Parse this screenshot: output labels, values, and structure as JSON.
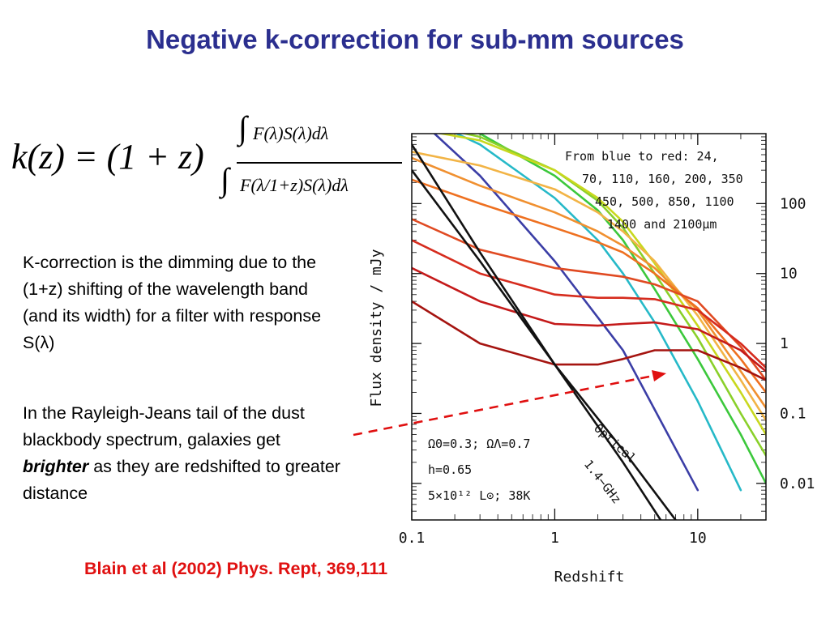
{
  "slide": {
    "title": "Negative k-correction for sub-mm sources",
    "formula": {
      "lhs": "k(z) = (1 + z)",
      "integral": "∫",
      "numerator": "F(λ)S(λ)dλ",
      "denominator": "F(λ/1+z)S(λ)dλ"
    },
    "paragraph1": "K-correction is the dimming due to the (1+z) shifting of the wavelength band (and its width) for a filter with response S(λ)",
    "paragraph2_before": "In the Rayleigh-Jeans tail of the dust blackbody spectrum, galaxies get ",
    "paragraph2_emph": "brighter",
    "paragraph2_after": " as they are redshifted to greater distance",
    "citation": "Blain et al (2002) Phys. Rept, 369,111"
  },
  "chart_data": {
    "type": "line",
    "xlabel": "Redshift",
    "ylabel": "Flux density / mJy",
    "xscale": "log",
    "yscale": "log",
    "xlim": [
      0.1,
      30
    ],
    "ylim": [
      0.003,
      1000
    ],
    "xticks": [
      0.1,
      1,
      10
    ],
    "xtick_labels": [
      "0.1",
      "1",
      "10"
    ],
    "yticks": [
      100,
      10,
      1,
      0.1,
      0.01
    ],
    "ytick_labels": [
      "100",
      "10",
      "1",
      "0.1",
      "0.01"
    ],
    "legend_text": [
      "From blue to red: 24,",
      "70, 110, 160, 200, 350",
      "450, 500, 850, 1100",
      "1400 and 2100μm"
    ],
    "params_text": [
      "Ω0=0.3;  ΩΛ=0.7",
      "h=0.65",
      "5×10¹² L⊙;  38K"
    ],
    "curve_labels": [
      "Optical",
      "1.4−GHz"
    ],
    "series": [
      {
        "name": "24",
        "color": "#3b3ea6",
        "x": [
          0.1,
          0.3,
          1,
          3,
          10
        ],
        "y": [
          2000,
          250,
          15,
          0.8,
          0.008
        ]
      },
      {
        "name": "70",
        "color": "#26b9c8",
        "x": [
          0.1,
          0.3,
          1,
          2,
          3,
          5,
          10,
          20
        ],
        "y": [
          2000,
          700,
          120,
          30,
          10,
          2,
          0.15,
          0.008
        ]
      },
      {
        "name": "110",
        "color": "#3cc83c",
        "x": [
          0.1,
          0.3,
          1,
          2,
          3,
          5,
          10,
          20,
          30
        ],
        "y": [
          2000,
          1000,
          250,
          80,
          30,
          6,
          0.6,
          0.05,
          0.01
        ]
      },
      {
        "name": "160",
        "color": "#8ad02a",
        "x": [
          0.1,
          0.3,
          1,
          2,
          3,
          5,
          10,
          20,
          30
        ],
        "y": [
          1500,
          900,
          300,
          110,
          45,
          10,
          1.2,
          0.1,
          0.025
        ]
      },
      {
        "name": "200",
        "color": "#c8d81e",
        "x": [
          0.1,
          0.3,
          1,
          2,
          3,
          5,
          10,
          20,
          30
        ],
        "y": [
          1200,
          800,
          300,
          120,
          55,
          14,
          1.8,
          0.2,
          0.05
        ]
      },
      {
        "name": "350",
        "color": "#f2b446",
        "x": [
          0.1,
          0.3,
          1,
          2,
          3,
          5,
          10,
          20,
          30
        ],
        "y": [
          550,
          350,
          160,
          75,
          40,
          15,
          2.5,
          0.3,
          0.08
        ]
      },
      {
        "name": "450",
        "color": "#f09030",
        "x": [
          0.1,
          0.3,
          1,
          2,
          3,
          5,
          10,
          20,
          30
        ],
        "y": [
          450,
          180,
          75,
          40,
          25,
          12,
          3,
          0.4,
          0.12
        ]
      },
      {
        "name": "500",
        "color": "#ee7020",
        "x": [
          0.1,
          0.3,
          1,
          2,
          3,
          5,
          10,
          20,
          30
        ],
        "y": [
          220,
          100,
          45,
          28,
          20,
          10,
          3.2,
          0.6,
          0.2
        ]
      },
      {
        "name": "850",
        "color": "#e04a22",
        "x": [
          0.1,
          0.3,
          1,
          2,
          3,
          5,
          10,
          20,
          30
        ],
        "y": [
          60,
          22,
          12,
          10,
          9,
          7,
          4,
          0.9,
          0.3
        ]
      },
      {
        "name": "1100",
        "color": "#d62c1e",
        "x": [
          0.1,
          0.3,
          1,
          2,
          3,
          5,
          10,
          20,
          30
        ],
        "y": [
          30,
          10,
          5,
          4.5,
          4.5,
          4.3,
          3,
          1,
          0.45
        ]
      },
      {
        "name": "1400",
        "color": "#c41a1a",
        "x": [
          0.1,
          0.3,
          1,
          2,
          3,
          5,
          10,
          20,
          30
        ],
        "y": [
          12,
          4,
          1.9,
          1.8,
          1.9,
          2,
          1.6,
          0.8,
          0.4
        ]
      },
      {
        "name": "2100",
        "color": "#a51410",
        "x": [
          0.1,
          0.3,
          1,
          2,
          3,
          5,
          10,
          20,
          30
        ],
        "y": [
          4,
          1,
          0.5,
          0.5,
          0.6,
          0.8,
          0.8,
          0.45,
          0.3
        ]
      },
      {
        "name": "Optical",
        "color": "#111111",
        "x": [
          0.1,
          0.3,
          1,
          3,
          5.5
        ],
        "y": [
          700,
          20,
          0.5,
          0.02,
          0.003
        ]
      },
      {
        "name": "1.4−GHz",
        "color": "#111111",
        "x": [
          0.1,
          0.3,
          1,
          3,
          7
        ],
        "y": [
          300,
          15,
          0.5,
          0.03,
          0.003
        ]
      }
    ],
    "arrow": {
      "color": "#e01010",
      "style": "dashed"
    }
  }
}
